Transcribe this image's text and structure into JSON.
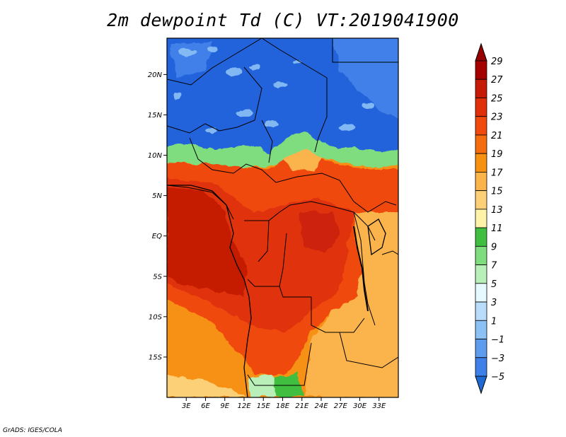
{
  "title": "2m dewpoint Td (C) VT:2019041900",
  "credit": "GrADS: IGES/COLA",
  "map": {
    "lon_range": [
      0,
      36
    ],
    "lat_range": [
      -20,
      24.5
    ],
    "lat_ticks": [
      {
        "value": 20,
        "label": "20N"
      },
      {
        "value": 15,
        "label": "15N"
      },
      {
        "value": 10,
        "label": "10N"
      },
      {
        "value": 5,
        "label": "5N"
      },
      {
        "value": 0,
        "label": "EQ"
      },
      {
        "value": -5,
        "label": "5S"
      },
      {
        "value": -10,
        "label": "10S"
      },
      {
        "value": -15,
        "label": "15S"
      }
    ],
    "lon_ticks": [
      {
        "value": 3,
        "label": "3E"
      },
      {
        "value": 6,
        "label": "6E"
      },
      {
        "value": 9,
        "label": "9E"
      },
      {
        "value": 12,
        "label": "12E"
      },
      {
        "value": 15,
        "label": "15E"
      },
      {
        "value": 18,
        "label": "18E"
      },
      {
        "value": 21,
        "label": "21E"
      },
      {
        "value": 24,
        "label": "24E"
      },
      {
        "value": 27,
        "label": "27E"
      },
      {
        "value": 30,
        "label": "30E"
      },
      {
        "value": 33,
        "label": "33E"
      }
    ]
  },
  "colorbar": {
    "levels": [
      {
        "label": "29",
        "color": "#a50000"
      },
      {
        "label": "27",
        "color": "#c51a06"
      },
      {
        "label": "25",
        "color": "#e0300a"
      },
      {
        "label": "23",
        "color": "#f04a0e"
      },
      {
        "label": "21",
        "color": "#f56c10"
      },
      {
        "label": "19",
        "color": "#f79112"
      },
      {
        "label": "17",
        "color": "#fbb44c"
      },
      {
        "label": "15",
        "color": "#fcd077"
      },
      {
        "label": "13",
        "color": "#fef3a9"
      },
      {
        "label": "11",
        "color": "#3fbe3f"
      },
      {
        "label": "9",
        "color": "#7fdc7f"
      },
      {
        "label": "7",
        "color": "#b9f0b9"
      },
      {
        "label": "5",
        "color": "#e6f9ff"
      },
      {
        "label": "3",
        "color": "#b8dcfa"
      },
      {
        "label": "1",
        "color": "#8cc1f5"
      },
      {
        "label": "−1",
        "color": "#5d9cef"
      },
      {
        "label": "−3",
        "color": "#3f80e8"
      },
      {
        "label": "−5",
        "color": "#2464dc"
      }
    ],
    "top_cap_color": "#960000",
    "bottom_cap_color": "#1e6ad2"
  }
}
